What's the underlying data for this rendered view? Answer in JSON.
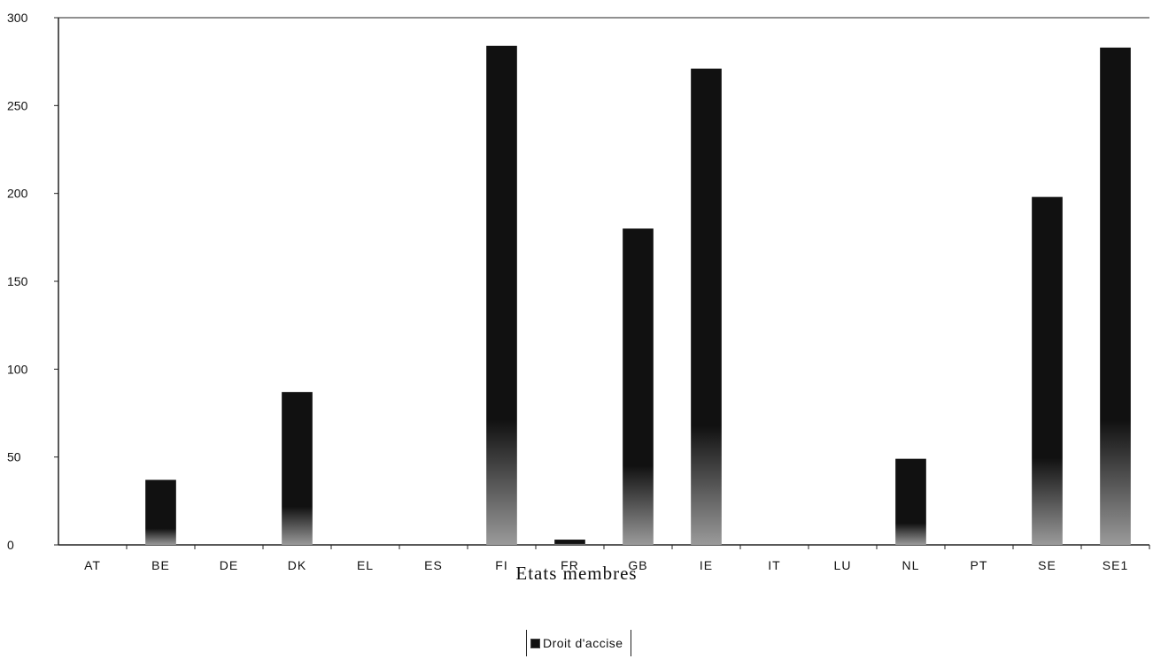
{
  "chart_data": {
    "type": "bar",
    "categories": [
      "AT",
      "BE",
      "DE",
      "DK",
      "EL",
      "ES",
      "FI",
      "FR",
      "GB",
      "IE",
      "IT",
      "LU",
      "NL",
      "PT",
      "SE",
      "SE1"
    ],
    "series": [
      {
        "name": "Droit d'accise",
        "values": [
          0,
          37,
          0,
          87,
          0,
          0,
          284,
          3,
          180,
          271,
          0,
          0,
          49,
          0,
          198,
          283
        ]
      }
    ],
    "xlabel": "Etats membres",
    "ylabel": "",
    "ylim": [
      0,
      300
    ],
    "yticks": [
      0,
      50,
      100,
      150,
      200,
      250,
      300
    ],
    "grid": false,
    "legend_position": "bottom-center",
    "colors": {
      "bar": "#111111",
      "bar_base": "#9a9a9a",
      "axis": "#222222"
    }
  }
}
